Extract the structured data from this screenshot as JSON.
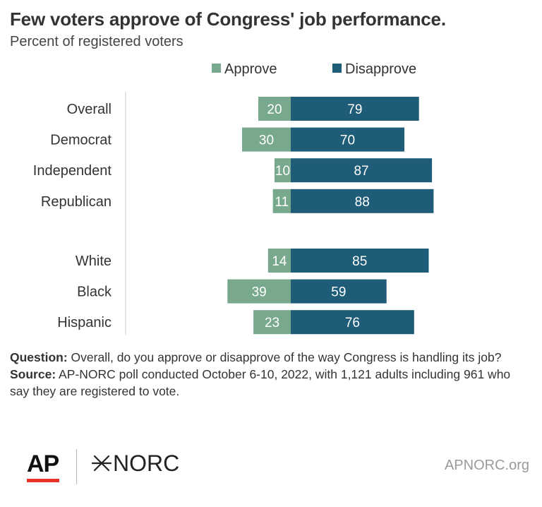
{
  "title": "Few voters approve of Congress' job performance.",
  "subtitle": "Percent of registered voters",
  "colors": {
    "approve": "#78a98c",
    "disapprove": "#1e5c78",
    "axis": "#dddddd",
    "text": "#333333",
    "ap_red": "#e8352c"
  },
  "chart_data": {
    "type": "bar",
    "orientation": "horizontal-diverging",
    "title": "Few voters approve of Congress' job performance.",
    "subtitle": "Percent of registered voters",
    "legend_position": "top",
    "categories": [
      "Overall",
      "Democrat",
      "Independent",
      "Republican",
      "White",
      "Black",
      "Hispanic"
    ],
    "groups": [
      [
        "Overall",
        "Democrat",
        "Independent",
        "Republican"
      ],
      [
        "White",
        "Black",
        "Hispanic"
      ]
    ],
    "series": [
      {
        "name": "Approve",
        "values": [
          20,
          30,
          10,
          11,
          14,
          39,
          23
        ]
      },
      {
        "name": "Disapprove",
        "values": [
          79,
          70,
          87,
          88,
          85,
          59,
          76
        ]
      }
    ]
  },
  "notes": {
    "question_label": "Question:",
    "question_text": " Overall, do you approve or disapprove of the way Congress is handling its job?",
    "source_label": "Source:",
    "source_text": " AP-NORC poll conducted October 6-10, 2022, with 1,121 adults including 961 who say they are registered to vote."
  },
  "footer": {
    "ap_logo": "AP",
    "norc_logo": "NORC",
    "norc_mark_icon": "asterisk-x-icon",
    "url": "APNORC.org"
  }
}
